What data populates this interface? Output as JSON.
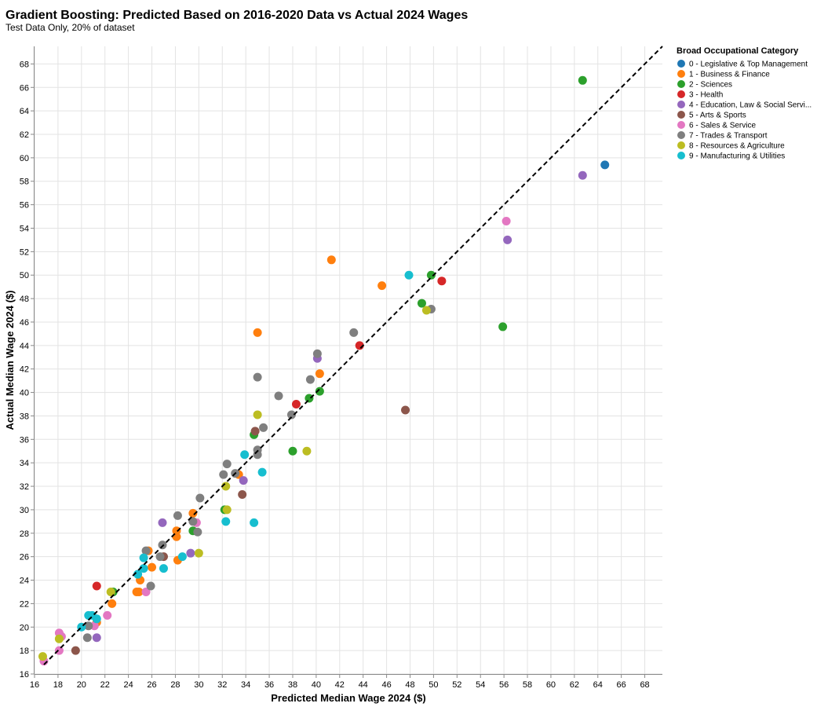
{
  "chart_data": {
    "type": "scatter",
    "title": "Gradient Boosting: Predicted Based on 2016-2020 Data vs Actual 2024 Wages",
    "subtitle": "Test Data Only, 20% of dataset",
    "xlabel": "Predicted Median Wage 2024 ($)",
    "ylabel": "Actual Median Wage 2024 ($)",
    "xlim": [
      16,
      69.5
    ],
    "ylim": [
      16,
      69.5
    ],
    "x_ticks": [
      16,
      18,
      20,
      22,
      24,
      26,
      28,
      30,
      32,
      34,
      36,
      38,
      40,
      42,
      44,
      46,
      48,
      50,
      52,
      54,
      56,
      58,
      60,
      62,
      64,
      66,
      68
    ],
    "y_ticks": [
      16,
      18,
      20,
      22,
      24,
      26,
      28,
      30,
      32,
      34,
      36,
      38,
      40,
      42,
      44,
      46,
      48,
      50,
      52,
      54,
      56,
      58,
      60,
      62,
      64,
      66,
      68
    ],
    "grid": true,
    "reference_line": "y = x",
    "legend_title": "Broad Occupational Category",
    "legend_position": "right",
    "series": [
      {
        "name": "0 - Legislative & Top Management",
        "color": "#1f77b4",
        "points": [
          [
            64.6,
            59.4
          ]
        ]
      },
      {
        "name": "1 - Business & Finance",
        "color": "#ff7f0e",
        "points": [
          [
            41.3,
            51.3
          ],
          [
            45.6,
            49.1
          ],
          [
            35.0,
            45.1
          ],
          [
            40.3,
            41.6
          ],
          [
            33.4,
            33.0
          ],
          [
            29.5,
            29.7
          ],
          [
            28.1,
            28.2
          ],
          [
            28.1,
            27.7
          ],
          [
            25.7,
            26.5
          ],
          [
            28.2,
            25.7
          ],
          [
            26.0,
            25.1
          ],
          [
            25.0,
            24.0
          ],
          [
            24.7,
            23.0
          ],
          [
            24.9,
            23.0
          ],
          [
            22.6,
            22.0
          ],
          [
            21.3,
            20.4
          ]
        ]
      },
      {
        "name": "2 - Sciences",
        "color": "#2ca02c",
        "points": [
          [
            62.7,
            66.6
          ],
          [
            49.8,
            50.0
          ],
          [
            49.0,
            47.6
          ],
          [
            55.9,
            45.6
          ],
          [
            40.3,
            40.1
          ],
          [
            39.4,
            39.5
          ],
          [
            38.0,
            35.0
          ],
          [
            34.7,
            36.4
          ],
          [
            32.2,
            30.0
          ],
          [
            29.5,
            28.2
          ],
          [
            22.7,
            23.0
          ]
        ]
      },
      {
        "name": "3 - Health",
        "color": "#d62728",
        "points": [
          [
            50.7,
            49.5
          ],
          [
            43.7,
            44.0
          ],
          [
            38.3,
            39.0
          ],
          [
            21.3,
            23.5
          ]
        ]
      },
      {
        "name": "4 - Education, Law & Social Servi...",
        "color": "#9467bd",
        "points": [
          [
            62.7,
            58.5
          ],
          [
            56.3,
            53.0
          ],
          [
            40.1,
            42.9
          ],
          [
            33.8,
            32.5
          ],
          [
            26.9,
            28.9
          ],
          [
            29.3,
            26.3
          ],
          [
            21.3,
            19.1
          ]
        ]
      },
      {
        "name": "5 - Arts & Sports",
        "color": "#8c564b",
        "points": [
          [
            47.6,
            38.5
          ],
          [
            34.8,
            36.7
          ],
          [
            33.7,
            31.3
          ],
          [
            27.0,
            26.0
          ],
          [
            19.5,
            18.0
          ]
        ]
      },
      {
        "name": "6 - Sales & Service",
        "color": "#e377c2",
        "points": [
          [
            56.2,
            54.6
          ],
          [
            29.8,
            28.9
          ],
          [
            25.5,
            23.0
          ],
          [
            22.2,
            21.0
          ],
          [
            21.1,
            20.1
          ],
          [
            18.1,
            19.5
          ],
          [
            18.3,
            19.2
          ],
          [
            18.1,
            18.0
          ],
          [
            16.8,
            17.1
          ]
        ]
      },
      {
        "name": "7 - Trades & Transport",
        "color": "#7f7f7f",
        "points": [
          [
            49.8,
            47.1
          ],
          [
            43.2,
            45.1
          ],
          [
            40.1,
            43.3
          ],
          [
            35.0,
            41.3
          ],
          [
            36.8,
            39.7
          ],
          [
            39.5,
            41.1
          ],
          [
            37.9,
            38.1
          ],
          [
            35.5,
            37.0
          ],
          [
            35.0,
            35.1
          ],
          [
            35.0,
            34.7
          ],
          [
            32.4,
            33.9
          ],
          [
            32.1,
            33.0
          ],
          [
            33.1,
            33.1
          ],
          [
            30.1,
            31.0
          ],
          [
            28.2,
            29.5
          ],
          [
            29.5,
            29.0
          ],
          [
            29.9,
            28.1
          ],
          [
            26.9,
            27.0
          ],
          [
            25.5,
            26.5
          ],
          [
            26.7,
            26.0
          ],
          [
            25.9,
            23.5
          ],
          [
            20.6,
            20.1
          ],
          [
            20.5,
            19.1
          ]
        ]
      },
      {
        "name": "8 - Resources & Agriculture",
        "color": "#bcbd22",
        "points": [
          [
            49.4,
            47.0
          ],
          [
            35.0,
            38.1
          ],
          [
            39.2,
            35.0
          ],
          [
            32.3,
            32.0
          ],
          [
            32.4,
            30.0
          ],
          [
            30.0,
            26.3
          ],
          [
            22.5,
            23.0
          ],
          [
            18.1,
            19.0
          ],
          [
            16.7,
            17.5
          ]
        ]
      },
      {
        "name": "9 - Manufacturing & Utilities",
        "color": "#17becf",
        "points": [
          [
            47.9,
            50.0
          ],
          [
            33.9,
            34.7
          ],
          [
            35.4,
            33.2
          ],
          [
            32.3,
            29.0
          ],
          [
            34.7,
            28.9
          ],
          [
            28.6,
            26.0
          ],
          [
            27.0,
            25.0
          ],
          [
            25.3,
            25.9
          ],
          [
            25.3,
            25.0
          ],
          [
            24.8,
            24.5
          ],
          [
            20.6,
            21.0
          ],
          [
            20.9,
            21.0
          ],
          [
            21.3,
            20.7
          ],
          [
            20.0,
            20.0
          ]
        ]
      }
    ]
  }
}
